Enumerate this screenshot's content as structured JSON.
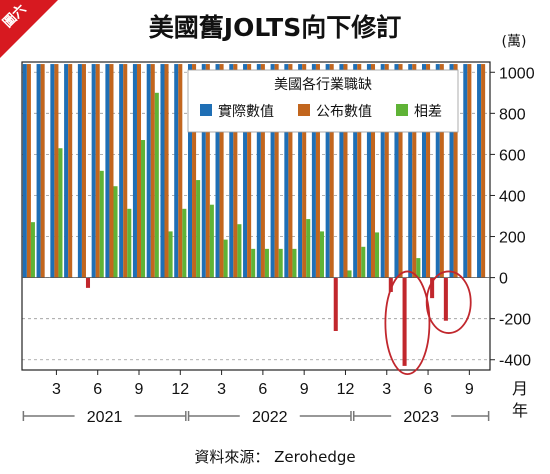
{
  "badge": "圖六",
  "title": "美國舊JOLTS向下修訂",
  "unit": "(萬)",
  "source": "資料來源： Zerohedge",
  "legend_title": "美國各行業職缺",
  "colors": {
    "actual": "#1f6fb5",
    "published": "#c2661e",
    "diff": "#5fb336",
    "neg": "#c1272d",
    "circle": "#c1272d",
    "badge": "#d71920"
  },
  "x_ticks": [
    "3",
    "6",
    "9",
    "12",
    "3",
    "6",
    "9",
    "12",
    "3",
    "6",
    "9"
  ],
  "x_unit": [
    "月",
    "年"
  ],
  "years": [
    "2021",
    "2022",
    "2023"
  ],
  "chart_data": {
    "type": "bar",
    "title": "美國舊JOLTS向下修訂",
    "ylabel": "(萬)",
    "ylim": [
      -450,
      1050
    ],
    "y_ticks": [
      1000,
      800,
      600,
      400,
      200,
      0,
      -200,
      -400
    ],
    "categories": [
      "2021-01",
      "2021-02",
      "2021-03",
      "2021-04",
      "2021-05",
      "2021-06",
      "2021-07",
      "2021-08",
      "2021-09",
      "2021-10",
      "2021-11",
      "2021-12",
      "2022-01",
      "2022-02",
      "2022-03",
      "2022-04",
      "2022-05",
      "2022-06",
      "2022-07",
      "2022-08",
      "2022-09",
      "2022-10",
      "2022-11",
      "2022-12",
      "2023-01",
      "2023-02",
      "2023-03",
      "2023-04",
      "2023-05",
      "2023-06",
      "2023-07",
      "2023-08",
      "2023-09",
      "2023-10"
    ],
    "series": [
      {
        "name": "實際數值",
        "values": [
          1040,
          1040,
          1040,
          1040,
          1040,
          1040,
          1040,
          1040,
          1040,
          1040,
          1040,
          1040,
          1040,
          1040,
          1040,
          1040,
          1040,
          1040,
          1040,
          1040,
          1040,
          1040,
          1040,
          1040,
          1040,
          1040,
          1040,
          1040,
          1040,
          1040,
          1040,
          1040,
          1040,
          1040
        ]
      },
      {
        "name": "公布數值",
        "values": [
          1040,
          1040,
          1040,
          1040,
          1040,
          1040,
          1040,
          1040,
          1040,
          1040,
          1040,
          1040,
          1040,
          1040,
          1040,
          1040,
          1040,
          1040,
          1040,
          1040,
          1040,
          1040,
          1040,
          1040,
          1040,
          1040,
          1040,
          1040,
          1040,
          1040,
          1040,
          1040,
          1040,
          1040
        ]
      },
      {
        "name": "相差",
        "values": [
          270,
          null,
          630,
          0,
          -50,
          520,
          445,
          335,
          670,
          900,
          225,
          335,
          475,
          355,
          185,
          260,
          140,
          140,
          140,
          140,
          285,
          225,
          -260,
          35,
          150,
          220,
          -70,
          -430,
          95,
          -100,
          -210,
          null,
          null,
          null
        ]
      }
    ],
    "annotations": [
      "ellipse around 2023-05 to 2023-06 negative bars",
      "ellipse around 2023-08 to 2023-09 negative bars"
    ],
    "grid": "horizontal dashed",
    "legend": "top-right"
  }
}
